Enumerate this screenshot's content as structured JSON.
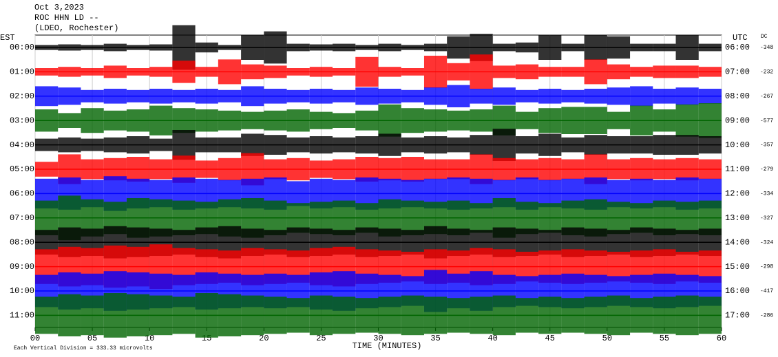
{
  "chart_data": {
    "type": "helicorder",
    "title_lines": [
      "Oct 3,2023",
      "ROC HHN LD --",
      "(LDEO, Rochester)"
    ],
    "left_header": "EST",
    "right_header": "UTC",
    "dc_header": "DC",
    "xlabel": "TIME (MINUTES)",
    "footnote": "Each Vertical Division = 333.33 microvolts",
    "xlim": [
      0,
      60
    ],
    "xticks": [
      {
        "value": 0,
        "label": "00"
      },
      {
        "value": 5,
        "label": "05"
      },
      10,
      15,
      20,
      25,
      30,
      35,
      40,
      45,
      50,
      55,
      60
    ],
    "grid": true,
    "x": [
      0,
      2,
      4,
      6,
      8,
      10,
      12,
      14,
      16,
      18,
      20,
      22,
      24,
      26,
      28,
      30,
      32,
      34,
      36,
      38,
      40,
      42,
      44,
      46,
      48,
      50,
      52,
      54,
      56,
      58
    ],
    "rows": [
      {
        "est": "00:00",
        "utc": "06:00",
        "dc": "-348",
        "color": "#000000",
        "values": [
          0.2,
          0.25,
          0.2,
          0.3,
          0.2,
          0.25,
          1.8,
          0.4,
          0.2,
          1.0,
          1.3,
          0.3,
          0.25,
          0.3,
          0.2,
          0.3,
          0.2,
          0.3,
          0.9,
          1.1,
          0.3,
          0.4,
          1.0,
          0.3,
          1.0,
          0.9,
          0.3,
          0.3,
          1.0,
          0.3
        ]
      },
      {
        "est": "01:00",
        "utc": "07:00",
        "dc": "-232",
        "color": "#ff0000",
        "values": [
          0.3,
          0.4,
          0.3,
          0.5,
          0.3,
          0.4,
          0.9,
          0.4,
          1.0,
          0.6,
          0.5,
          0.3,
          0.4,
          0.3,
          1.2,
          0.4,
          0.3,
          1.3,
          0.7,
          1.4,
          0.5,
          0.6,
          0.4,
          0.4,
          1.0,
          0.6,
          0.4,
          0.5,
          0.5,
          0.4
        ]
      },
      {
        "est": "02:00",
        "utc": "08:00",
        "dc": "-267",
        "color": "#0000ff",
        "values": [
          0.8,
          0.7,
          0.5,
          0.6,
          0.5,
          0.6,
          0.5,
          0.6,
          0.5,
          0.8,
          0.6,
          0.5,
          0.6,
          0.5,
          0.7,
          0.6,
          0.5,
          0.7,
          0.9,
          0.6,
          0.7,
          0.5,
          0.6,
          0.5,
          0.6,
          0.7,
          0.8,
          0.6,
          0.7,
          0.6
        ]
      },
      {
        "est": "03:00",
        "utc": "09:00",
        "dc": "-577",
        "color": "#006400",
        "values": [
          0.9,
          0.6,
          1.0,
          0.8,
          0.9,
          1.2,
          1.0,
          0.9,
          0.8,
          0.7,
          0.8,
          0.9,
          0.7,
          0.6,
          0.8,
          1.3,
          1.0,
          0.9,
          0.8,
          0.9,
          1.2,
          0.7,
          1.0,
          1.1,
          1.1,
          0.7,
          1.2,
          0.9,
          1.3,
          1.4
        ]
      },
      {
        "est": "04:00",
        "utc": "10:00",
        "dc": "-357",
        "color": "#000000",
        "values": [
          0.5,
          0.6,
          0.5,
          0.6,
          0.7,
          0.5,
          1.2,
          0.6,
          0.6,
          0.9,
          0.8,
          0.6,
          0.7,
          0.6,
          0.7,
          0.9,
          0.6,
          0.7,
          0.6,
          0.8,
          1.3,
          0.7,
          0.9,
          0.6,
          0.8,
          0.7,
          0.7,
          0.8,
          0.8,
          0.7
        ]
      },
      {
        "est": "05:00",
        "utc": "11:00",
        "dc": "-279",
        "color": "#ff0000",
        "values": [
          0.6,
          1.2,
          0.8,
          0.9,
          1.0,
          0.8,
          1.1,
          0.7,
          0.9,
          1.3,
          0.8,
          0.9,
          0.7,
          0.8,
          1.0,
          0.9,
          1.0,
          0.8,
          0.8,
          1.2,
          0.9,
          0.8,
          0.9,
          0.8,
          1.2,
          0.8,
          0.9,
          0.8,
          0.9,
          0.8
        ]
      },
      {
        "est": "06:00",
        "utc": "12:00",
        "dc": "-334",
        "color": "#0000ff",
        "values": [
          1.2,
          1.3,
          1.1,
          1.4,
          1.2,
          1.1,
          1.3,
          1.2,
          1.1,
          1.2,
          1.3,
          1.0,
          1.2,
          1.1,
          1.3,
          1.2,
          1.1,
          1.2,
          1.3,
          1.2,
          1.1,
          1.3,
          1.1,
          1.2,
          1.3,
          1.1,
          1.2,
          1.1,
          1.3,
          1.2
        ]
      },
      {
        "est": "07:00",
        "utc": "13:00",
        "dc": "-327",
        "color": "#006400",
        "values": [
          1.4,
          1.8,
          1.5,
          1.3,
          1.6,
          1.5,
          1.4,
          1.3,
          1.5,
          1.6,
          1.4,
          1.2,
          1.3,
          1.4,
          1.2,
          1.5,
          1.4,
          1.3,
          1.4,
          1.2,
          1.6,
          1.3,
          1.2,
          1.4,
          1.5,
          1.3,
          1.2,
          1.4,
          1.3,
          1.4
        ]
      },
      {
        "est": "08:00",
        "utc": "14:00",
        "dc": "-324",
        "color": "#000000",
        "values": [
          1.0,
          1.2,
          1.1,
          1.3,
          1.2,
          1.1,
          1.0,
          1.2,
          1.3,
          1.1,
          1.0,
          1.2,
          1.1,
          1.0,
          1.2,
          1.1,
          1.0,
          1.3,
          1.1,
          1.0,
          1.2,
          1.1,
          1.0,
          1.2,
          1.1,
          1.0,
          1.2,
          1.1,
          1.0,
          1.1
        ]
      },
      {
        "est": "09:00",
        "utc": "15:00",
        "dc": "-298",
        "color": "#ff0000",
        "values": [
          1.4,
          1.6,
          1.5,
          1.7,
          1.6,
          1.8,
          1.5,
          1.4,
          1.3,
          1.5,
          1.4,
          1.3,
          1.5,
          1.6,
          1.4,
          1.3,
          1.2,
          1.4,
          1.3,
          1.5,
          1.4,
          1.2,
          1.3,
          1.4,
          1.3,
          1.2,
          1.3,
          1.4,
          1.2,
          1.3
        ]
      },
      {
        "est": "10:00",
        "utc": "16:00",
        "dc": "-417",
        "color": "#0000ff",
        "values": [
          1.3,
          1.5,
          1.4,
          1.6,
          1.5,
          1.4,
          1.3,
          1.5,
          1.4,
          1.3,
          1.4,
          1.3,
          1.5,
          1.6,
          1.4,
          1.3,
          1.2,
          1.7,
          1.4,
          1.6,
          1.3,
          1.2,
          1.3,
          1.4,
          1.3,
          1.2,
          1.3,
          1.4,
          1.3,
          1.2
        ]
      },
      {
        "est": "11:00",
        "utc": "17:00",
        "dc": "-286",
        "color": "#006400",
        "values": [
          1.5,
          1.7,
          1.6,
          1.8,
          1.7,
          1.6,
          1.5,
          1.8,
          1.7,
          1.6,
          1.5,
          1.4,
          1.6,
          1.5,
          1.4,
          1.5,
          1.6,
          1.5,
          1.4,
          1.5,
          1.6,
          1.4,
          1.5,
          1.4,
          1.5,
          1.6,
          1.4,
          1.5,
          1.6,
          1.5
        ]
      }
    ]
  }
}
